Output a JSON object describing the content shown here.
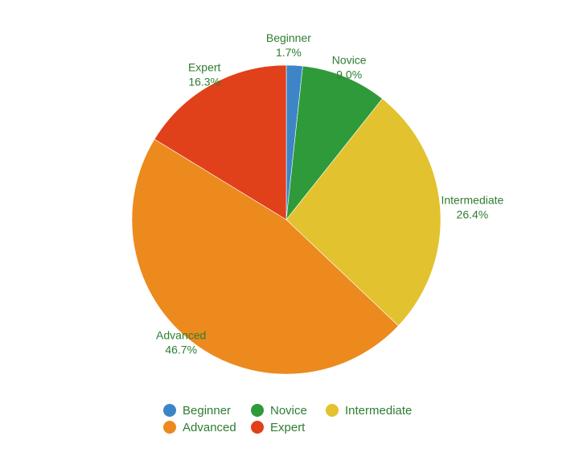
{
  "chart_data": {
    "type": "pie",
    "title": "",
    "slices": [
      {
        "label": "Beginner",
        "value": 1.7,
        "value_label": "1.7%",
        "color": "#3d85c6"
      },
      {
        "label": "Novice",
        "value": 9.0,
        "value_label": "9.0%",
        "color": "#2e9a3a"
      },
      {
        "label": "Intermediate",
        "value": 26.4,
        "value_label": "26.4%",
        "color": "#e2c22e"
      },
      {
        "label": "Advanced",
        "value": 46.7,
        "value_label": "46.7%",
        "color": "#ec8a1e"
      },
      {
        "label": "Expert",
        "value": 16.3,
        "value_label": "16.3%",
        "color": "#e0401a"
      }
    ],
    "legend": {
      "placement": "bottom",
      "entries": [
        "Beginner",
        "Novice",
        "Intermediate",
        "Advanced",
        "Expert"
      ]
    },
    "label_color": "#2e7d32"
  }
}
